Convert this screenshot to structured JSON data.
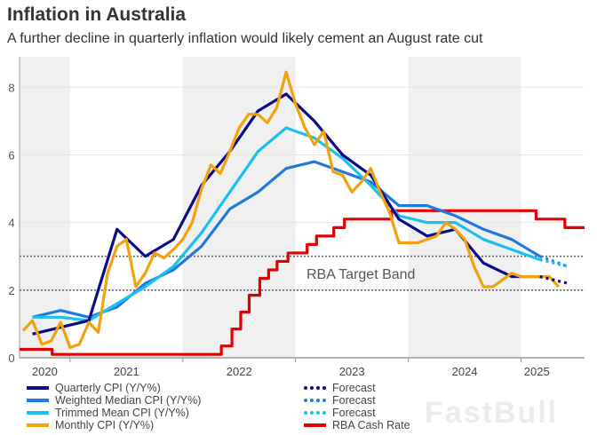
{
  "title": "Inflation in Australia",
  "subtitle": "A further decline in quarterly inflation would likely cement an August rate cut",
  "watermark": "FastBull",
  "chart_data": {
    "type": "line",
    "title": "Inflation in Australia",
    "subtitle": "A further decline in quarterly inflation would likely cement an August rate cut",
    "xlabel": "",
    "ylabel": "",
    "xlim": [
      "2020-07-20",
      "2025-07-24"
    ],
    "ylim": [
      0,
      8.9
    ],
    "yticks": [
      0,
      2,
      4,
      6,
      8
    ],
    "xtick_labels": [
      "2020",
      "2021",
      "2022",
      "2023",
      "2024",
      "2025"
    ],
    "shaded_years": [
      "2020",
      "2022",
      "2024"
    ],
    "grid": true,
    "annotation": "RBA Target Band",
    "target_band": [
      2,
      3
    ],
    "series": [
      {
        "name": "Quarterly CPI (Y/Y%)",
        "color": "#0b0b8a",
        "x": [
          "2020-09",
          "2020-12",
          "2021-03",
          "2021-06",
          "2021-09",
          "2021-12",
          "2022-03",
          "2022-06",
          "2022-09",
          "2022-12",
          "2023-03",
          "2023-06",
          "2023-09",
          "2023-12",
          "2024-03",
          "2024-06",
          "2024-09",
          "2024-12",
          "2025-03"
        ],
        "values": [
          0.7,
          0.9,
          1.1,
          3.8,
          3.0,
          3.5,
          5.1,
          6.1,
          7.3,
          7.8,
          7.0,
          6.0,
          5.4,
          4.1,
          3.6,
          3.8,
          2.8,
          2.4,
          2.4
        ]
      },
      {
        "name": "Weighted Median CPI (Y/Y%)",
        "color": "#1f7ae0",
        "x": [
          "2020-09",
          "2020-12",
          "2021-03",
          "2021-06",
          "2021-09",
          "2021-12",
          "2022-03",
          "2022-06",
          "2022-09",
          "2022-12",
          "2023-03",
          "2023-06",
          "2023-09",
          "2023-12",
          "2024-03",
          "2024-06",
          "2024-09",
          "2024-12",
          "2025-03"
        ],
        "values": [
          1.2,
          1.4,
          1.2,
          1.5,
          2.2,
          2.6,
          3.3,
          4.4,
          4.9,
          5.6,
          5.8,
          5.5,
          5.2,
          4.5,
          4.5,
          4.2,
          3.8,
          3.5,
          3.0
        ]
      },
      {
        "name": "Trimmed Mean CPI (Y/Y%)",
        "color": "#19c0f0",
        "x": [
          "2020-09",
          "2020-12",
          "2021-03",
          "2021-06",
          "2021-09",
          "2021-12",
          "2022-03",
          "2022-06",
          "2022-09",
          "2022-12",
          "2023-03",
          "2023-06",
          "2023-09",
          "2023-12",
          "2024-03",
          "2024-06",
          "2024-09",
          "2024-12",
          "2025-03"
        ],
        "values": [
          1.2,
          1.2,
          1.1,
          1.6,
          2.1,
          2.7,
          3.7,
          4.9,
          6.1,
          6.8,
          6.5,
          5.9,
          5.1,
          4.2,
          4.0,
          4.0,
          3.5,
          3.2,
          2.9
        ]
      },
      {
        "name": "Monthly CPI (Y/Y%)",
        "color": "#f2a20c",
        "x": [
          "2020-08",
          "2020-09",
          "2020-10",
          "2020-11",
          "2020-12",
          "2021-01",
          "2021-02",
          "2021-03",
          "2021-04",
          "2021-05",
          "2021-06",
          "2021-07",
          "2021-08",
          "2021-09",
          "2021-10",
          "2021-11",
          "2021-12",
          "2022-01",
          "2022-02",
          "2022-03",
          "2022-04",
          "2022-05",
          "2022-06",
          "2022-07",
          "2022-08",
          "2022-09",
          "2022-10",
          "2022-11",
          "2022-12",
          "2023-01",
          "2023-02",
          "2023-03",
          "2023-04",
          "2023-05",
          "2023-06",
          "2023-07",
          "2023-08",
          "2023-09",
          "2023-10",
          "2023-11",
          "2023-12",
          "2024-01",
          "2024-02",
          "2024-03",
          "2024-04",
          "2024-05",
          "2024-06",
          "2024-07",
          "2024-08",
          "2024-09",
          "2024-10",
          "2024-11",
          "2024-12",
          "2025-01",
          "2025-02",
          "2025-03",
          "2025-04",
          "2025-05"
        ],
        "values": [
          0.8,
          1.1,
          0.4,
          0.5,
          1.05,
          0.3,
          0.4,
          1.05,
          0.75,
          2.5,
          3.3,
          3.5,
          2.1,
          2.5,
          3.1,
          2.95,
          3.2,
          3.5,
          4.0,
          5.0,
          5.7,
          5.45,
          6.1,
          6.8,
          7.2,
          7.2,
          6.95,
          7.4,
          8.45,
          7.5,
          6.8,
          6.3,
          6.7,
          5.5,
          5.4,
          4.9,
          5.2,
          5.6,
          4.9,
          4.3,
          3.4,
          3.4,
          3.4,
          3.5,
          3.6,
          4.0,
          3.8,
          3.5,
          2.7,
          2.1,
          2.1,
          2.3,
          2.5,
          2.4,
          2.4,
          2.4,
          2.4,
          2.1
        ]
      },
      {
        "name": "Forecast",
        "color": "#0b0b8a",
        "dotted": true,
        "x": [
          "2025-03",
          "2025-06"
        ],
        "values": [
          2.4,
          2.2
        ]
      },
      {
        "name": "Forecast",
        "color": "#1f7ae0",
        "dotted": true,
        "x": [
          "2025-03",
          "2025-06"
        ],
        "values": [
          3.0,
          2.7
        ]
      },
      {
        "name": "Forecast",
        "color": "#19c0f0",
        "dotted": true,
        "x": [
          "2025-03",
          "2025-06"
        ],
        "values": [
          2.9,
          2.7
        ]
      },
      {
        "name": "RBA Cash Rate",
        "color": "#e00000",
        "step": true,
        "x": [
          "2020-07-20",
          "2020-11-04",
          "2022-05-04",
          "2022-06-08",
          "2022-07-06",
          "2022-08-03",
          "2022-09-07",
          "2022-10-05",
          "2022-11-02",
          "2022-12-07",
          "2023-02-08",
          "2023-03-08",
          "2023-05-03",
          "2023-06-07",
          "2023-11-08",
          "2025-02-19",
          "2025-05-21",
          "2025-07-24"
        ],
        "values": [
          0.25,
          0.1,
          0.35,
          0.85,
          1.35,
          1.85,
          2.35,
          2.6,
          2.85,
          3.1,
          3.35,
          3.6,
          3.85,
          4.1,
          4.35,
          4.1,
          3.85,
          3.85
        ]
      }
    ]
  }
}
